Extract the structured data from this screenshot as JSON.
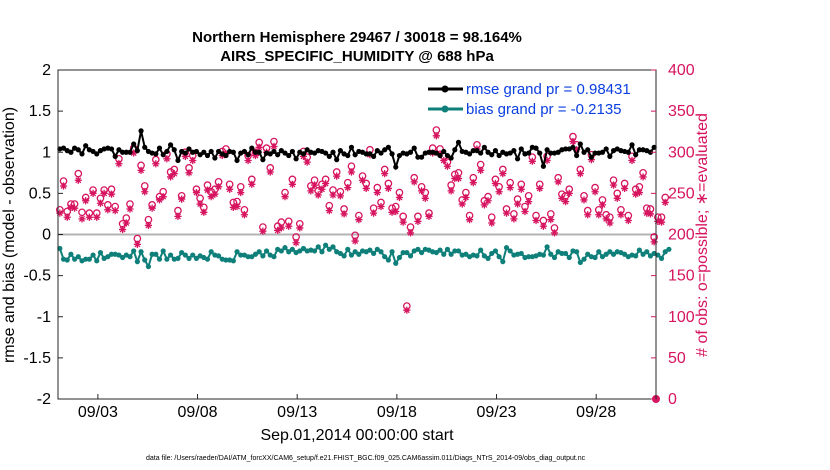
{
  "chart_data": {
    "type": "line",
    "title": "Northern Hemisphere 29467 / 30018 = 98.164%",
    "subtitle": "AIRS_SPECIFIC_HUMIDITY @ 688 hPa",
    "xlabel": "Sep.01,2014 00:00:00 start",
    "ylabel_left": "rmse and bias (model - observation)",
    "ylabel_right": "# of obs: o=possible; ∗=evaluated",
    "x_tick_labels": [
      "09/03",
      "09/08",
      "09/13",
      "09/18",
      "09/23",
      "09/28"
    ],
    "x_tick_days": [
      3,
      8,
      13,
      18,
      23,
      28
    ],
    "xlim": [
      1,
      31
    ],
    "ylim_left": [
      -2,
      2
    ],
    "y_ticks_left": [
      "-2",
      "-1.5",
      "-1",
      "-0.5",
      "0",
      "0.5",
      "1",
      "1.5",
      "2"
    ],
    "ylim_right": [
      0,
      400
    ],
    "y_ticks_right": [
      "0",
      "50",
      "100",
      "150",
      "200",
      "250",
      "300",
      "350",
      "400"
    ],
    "legend": [
      {
        "label": "rmse grand pr = 0.98431",
        "color": "#000000"
      },
      {
        "label": "bias grand pr = -0.2135",
        "color": "#0f7f7a"
      }
    ],
    "colors": {
      "rmse": "#000000",
      "bias": "#0f7f7a",
      "obs": "#d6145f",
      "zero_line": "#b3b3b3"
    },
    "series": [
      {
        "name": "rmse",
        "values": [
          1.04,
          1.05,
          1.02,
          1.0,
          1.05,
          1.03,
          0.98,
          1.08,
          1.03,
          1.01,
          0.98,
          1.02,
          1.04,
          1.05,
          1.04,
          0.95,
          1.03,
          1.0,
          1.0,
          1.0,
          1.1,
          1.02,
          1.26,
          1.06,
          1.01,
          0.99,
          0.98,
          1.05,
          0.97,
          1.01,
          1.09,
          1.03,
          0.9,
          1.01,
          0.99,
          1.04,
          1.0,
          1.01,
          0.97,
          1.0,
          0.96,
          1.01,
          0.93,
          1.01,
          0.98,
          0.96,
          1.01,
          1.0,
          0.9,
          0.99,
          1.01,
          0.97,
          1.05,
          1.0,
          1.0,
          0.91,
          0.99,
          0.98,
          1.01,
          0.97,
          1.02,
          0.99,
          0.96,
          1.01,
          0.92,
          1.0,
          0.98,
          1.03,
          1.0,
          0.99,
          1.02,
          1.01,
          0.99,
          0.95,
          1.0,
          0.91,
          1.02,
          0.98,
          0.96,
          1.06,
          0.97,
          1.01,
          1.0,
          0.98,
          0.98,
          0.95,
          1.02,
          0.99,
          1.03,
          1.06,
          0.98,
          0.82,
          0.96,
          0.99,
          0.98,
          1.0,
          1.05,
          0.94,
          0.94,
          0.99,
          1.0,
          1.0,
          0.99,
          0.96,
          1.01,
          0.96,
          0.93,
          1.03,
          1.12,
          1.01,
          1.0,
          0.98,
          1.02,
          1.02,
          0.99,
          1.06,
          1.0,
          0.97,
          1.02,
          0.96,
          1.0,
          0.98,
          0.99,
          1.02,
          0.92,
          1.04,
          0.98,
          0.99,
          1.06,
          1.05,
          0.99,
          0.83,
          1.03,
          0.99,
          0.99,
          1.0,
          1.03,
          1.04,
          1.04,
          1.06,
          0.96,
          1.1,
          1.0,
          1.03,
          0.94,
          0.99,
          0.99,
          1.0,
          1.04,
          0.95,
          1.02,
          1.04,
          1.02,
          1.01,
          1.0,
          1.09,
          0.97,
          1.03,
          1.03,
          1.02,
          1.0,
          1.06
        ]
      },
      {
        "name": "bias",
        "values": [
          -0.17,
          -0.3,
          -0.31,
          -0.24,
          -0.3,
          -0.27,
          -0.32,
          -0.3,
          -0.3,
          -0.25,
          -0.32,
          -0.22,
          -0.29,
          -0.27,
          -0.24,
          -0.24,
          -0.25,
          -0.28,
          -0.25,
          -0.27,
          -0.2,
          -0.33,
          -0.21,
          -0.31,
          -0.39,
          -0.24,
          -0.24,
          -0.3,
          -0.2,
          -0.3,
          -0.25,
          -0.3,
          -0.29,
          -0.22,
          -0.25,
          -0.29,
          -0.25,
          -0.29,
          -0.26,
          -0.28,
          -0.3,
          -0.21,
          -0.25,
          -0.26,
          -0.3,
          -0.31,
          -0.31,
          -0.32,
          -0.21,
          -0.25,
          -0.25,
          -0.27,
          -0.27,
          -0.24,
          -0.21,
          -0.26,
          -0.2,
          -0.25,
          -0.27,
          -0.18,
          -0.2,
          -0.16,
          -0.21,
          -0.18,
          -0.22,
          -0.2,
          -0.17,
          -0.2,
          -0.19,
          -0.2,
          -0.15,
          -0.21,
          -0.13,
          -0.18,
          -0.15,
          -0.21,
          -0.23,
          -0.26,
          -0.18,
          -0.25,
          -0.21,
          -0.24,
          -0.2,
          -0.21,
          -0.19,
          -0.23,
          -0.18,
          -0.21,
          -0.27,
          -0.31,
          -0.21,
          -0.35,
          -0.28,
          -0.22,
          -0.22,
          -0.26,
          -0.2,
          -0.18,
          -0.22,
          -0.18,
          -0.19,
          -0.21,
          -0.22,
          -0.19,
          -0.24,
          -0.18,
          -0.24,
          -0.2,
          -0.2,
          -0.25,
          -0.24,
          -0.27,
          -0.25,
          -0.26,
          -0.19,
          -0.26,
          -0.29,
          -0.23,
          -0.2,
          -0.27,
          -0.33,
          -0.16,
          -0.2,
          -0.25,
          -0.24,
          -0.23,
          -0.28,
          -0.27,
          -0.27,
          -0.26,
          -0.24,
          -0.25,
          -0.15,
          -0.24,
          -0.28,
          -0.21,
          -0.23,
          -0.23,
          -0.28,
          -0.2,
          -0.21,
          -0.34,
          -0.3,
          -0.24,
          -0.27,
          -0.28,
          -0.21,
          -0.27,
          -0.24,
          -0.21,
          -0.24,
          -0.21,
          -0.22,
          -0.24,
          -0.27,
          -0.25,
          -0.26,
          -0.19,
          -0.24,
          -0.21,
          -0.26,
          -0.23,
          -0.25,
          -0.29,
          -0.21,
          -0.18
        ]
      },
      {
        "name": "possible",
        "values": [
          230,
          265,
          228,
          237,
          237,
          274,
          227,
          245,
          226,
          254,
          226,
          244,
          254,
          236,
          255,
          234,
          292,
          213,
          220,
          237,
          305,
          195,
          284,
          259,
          218,
          236,
          291,
          246,
          252,
          298,
          276,
          279,
          229,
          247,
          300,
          281,
          296,
          255,
          244,
          233,
          260,
          252,
          255,
          264,
          301,
          304,
          261,
          239,
          240,
          258,
          230,
          296,
          267,
          300,
          312,
          209,
          305,
          281,
          313,
          210,
          215,
          251,
          216,
          267,
          197,
          213,
          301,
          294,
          259,
          266,
          253,
          261,
          267,
          235,
          254,
          276,
          252,
          231,
          263,
          283,
          199,
          223,
          271,
          262,
          303,
          232,
          257,
          239,
          279,
          262,
          232,
          234,
          251,
          222,
          113,
          209,
          269,
          222,
          258,
          251,
          226,
          305,
          327,
          304,
          295,
          288,
          260,
          273,
          275,
          242,
          251,
          223,
          269,
          309,
          285,
          241,
          246,
          221,
          267,
          258,
          279,
          231,
          263,
          225,
          243,
          261,
          234,
          247,
          294,
          223,
          261,
          217,
          295,
          225,
          208,
          269,
          249,
          247,
          255,
          319,
          309,
          279,
          247,
          229,
          297,
          257,
          230,
          242,
          224,
          221,
          266,
          250,
          230,
          262,
          223,
          295,
          255,
          258,
          275,
          232,
          231,
          197,
          221,
          221,
          245
        ]
      },
      {
        "name": "evaluated",
        "values": [
          226,
          259,
          221,
          233,
          232,
          266,
          219,
          241,
          221,
          250,
          221,
          238,
          250,
          230,
          249,
          229,
          286,
          206,
          214,
          231,
          299,
          188,
          278,
          252,
          211,
          232,
          286,
          242,
          246,
          292,
          270,
          274,
          222,
          243,
          295,
          275,
          290,
          251,
          237,
          227,
          254,
          246,
          249,
          258,
          296,
          298,
          255,
          233,
          234,
          251,
          224,
          290,
          261,
          296,
          306,
          204,
          300,
          276,
          307,
          205,
          208,
          246,
          210,
          261,
          190,
          208,
          295,
          288,
          253,
          260,
          248,
          255,
          262,
          229,
          248,
          271,
          247,
          225,
          257,
          276,
          192,
          218,
          266,
          256,
          297,
          226,
          251,
          234,
          274,
          256,
          227,
          228,
          245,
          215,
          108,
          202,
          264,
          216,
          253,
          244,
          222,
          299,
          320,
          298,
          290,
          283,
          253,
          268,
          268,
          237,
          245,
          218,
          263,
          304,
          278,
          236,
          241,
          214,
          262,
          252,
          274,
          226,
          257,
          219,
          237,
          255,
          228,
          240,
          289,
          217,
          256,
          210,
          290,
          218,
          202,
          264,
          244,
          240,
          250,
          313,
          303,
          274,
          242,
          224,
          291,
          252,
          224,
          236,
          219,
          214,
          260,
          244,
          224,
          256,
          217,
          290,
          249,
          251,
          270,
          226,
          225,
          191,
          216,
          215,
          239
        ]
      }
    ],
    "footer": "data file: /Users/raeder/DAI/ATM_forcXX/CAM6_setup/f.e21.FHIST_BGC.f09_025.CAM6assim.011/Diags_NTrS_2014-09/obs_diag_output.nc"
  }
}
